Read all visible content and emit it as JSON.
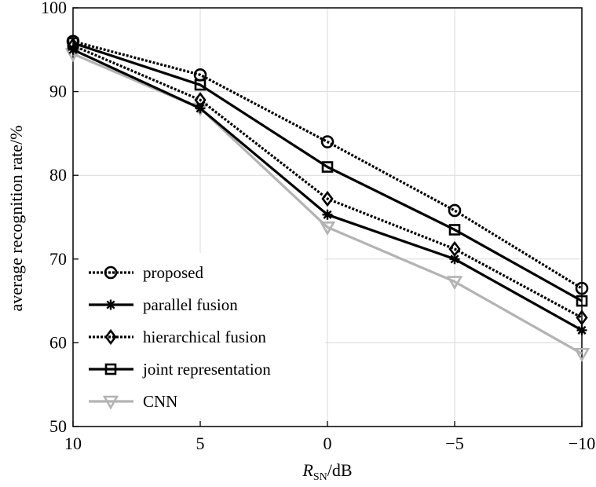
{
  "chart_data": {
    "type": "line",
    "title": "",
    "xlabel_main": "R",
    "xlabel_sub": "SN",
    "xlabel_unit": "/dB",
    "ylabel": "average recognition rate/%",
    "x": [
      10,
      5,
      0,
      -5,
      -10
    ],
    "x_tick_labels": [
      "10",
      "5",
      "0",
      "−5",
      "−10"
    ],
    "y_ticks": [
      50,
      60,
      70,
      80,
      90,
      100
    ],
    "y_tick_labels": [
      "50",
      "60",
      "70",
      "80",
      "90",
      "100"
    ],
    "xlim": [
      10,
      -10
    ],
    "ylim": [
      50,
      100
    ],
    "grid": true,
    "legend_position": "bottom-left",
    "series": [
      {
        "name": "proposed",
        "values": [
          96.0,
          92.0,
          84.0,
          75.8,
          66.5
        ],
        "marker": "circle",
        "color": "#000000",
        "dash": "dotted"
      },
      {
        "name": "parallel fusion",
        "values": [
          95.0,
          88.0,
          75.3,
          70.0,
          61.5
        ],
        "marker": "star",
        "color": "#000000",
        "dash": "solid"
      },
      {
        "name": "hierarchical fusion",
        "values": [
          95.5,
          89.0,
          77.2,
          71.2,
          63.0
        ],
        "marker": "diamond",
        "color": "#000000",
        "dash": "dotted"
      },
      {
        "name": "joint representation",
        "values": [
          95.8,
          90.8,
          81.0,
          73.5,
          65.0
        ],
        "marker": "square",
        "color": "#000000",
        "dash": "solid"
      },
      {
        "name": "CNN",
        "values": [
          94.5,
          88.0,
          73.8,
          67.3,
          58.7
        ],
        "marker": "triangle-down",
        "color": "#b3b3b3",
        "dash": "solid"
      }
    ]
  }
}
